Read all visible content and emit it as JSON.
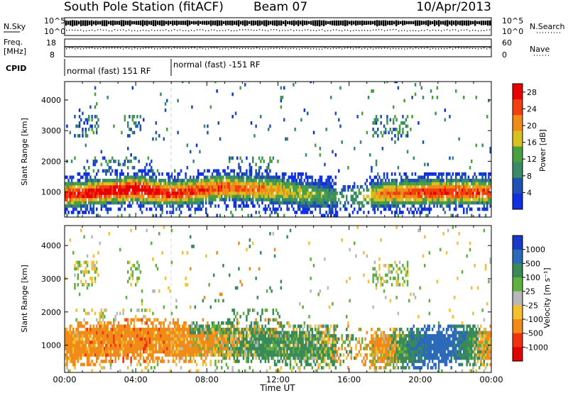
{
  "header": {
    "station": "South Pole Station (fitACF)",
    "beam": "Beam 07",
    "date": "10/Apr/2013"
  },
  "top_panels": {
    "nsky": {
      "label": "N.Sky",
      "tick_top": "10^5",
      "tick_bottom": "10^0"
    },
    "nsearch": {
      "label": "N.Search",
      "tick_top": "10^5",
      "tick_bottom": "10^0"
    },
    "freq": {
      "label_line1": "Freq.",
      "label_line2": "[MHz]",
      "ticks": [
        "18",
        "8"
      ]
    },
    "nave": {
      "label": "Nave",
      "ticks": [
        "60",
        "0"
      ]
    },
    "cpid": {
      "label": "CPID",
      "segments": [
        "normal (fast) 151 RF",
        "normal (fast) -151 RF"
      ]
    }
  },
  "chart_data": [
    {
      "type": "heatmap",
      "title": "",
      "xlabel": "Time UT",
      "ylabel": "Slant Range [km]",
      "x_ticks": [
        "00:00",
        "04:00",
        "08:00",
        "12:00",
        "16:00",
        "20:00",
        "00:00"
      ],
      "x_range_hours": [
        0,
        24
      ],
      "y_ticks": [
        "1000",
        "2000",
        "3000",
        "4000"
      ],
      "ylim": [
        180,
        4600
      ],
      "colorbar": {
        "label": "Power [dB]",
        "ticks": [
          "4",
          "8",
          "12",
          "16",
          "20",
          "24",
          "28"
        ],
        "range": [
          0,
          30
        ],
        "colors": [
          "#1030e0",
          "#2050b0",
          "#3a8a6a",
          "#48a040",
          "#d8c020",
          "#f08a18",
          "#f04010",
          "#e80000"
        ]
      },
      "echo_band": [
        {
          "t": 0,
          "center": 850,
          "peak": 26
        },
        {
          "t": 4,
          "center": 1050,
          "peak": 30
        },
        {
          "t": 6,
          "center": 900,
          "peak": 26
        },
        {
          "t": 9,
          "center": 1100,
          "peak": 24
        },
        {
          "t": 12,
          "center": 1000,
          "peak": 20
        },
        {
          "t": 14,
          "center": 850,
          "peak": 14
        },
        {
          "t": 16,
          "center": 750,
          "peak": 10
        },
        {
          "t": 18,
          "center": 900,
          "peak": 22
        },
        {
          "t": 21,
          "center": 950,
          "peak": 26
        },
        {
          "t": 24,
          "center": 950,
          "peak": 24
        }
      ]
    },
    {
      "type": "heatmap",
      "title": "",
      "xlabel": "Time UT",
      "ylabel": "Slant Range [km]",
      "x_ticks": [
        "00:00",
        "04:00",
        "08:00",
        "12:00",
        "16:00",
        "20:00",
        "00:00"
      ],
      "x_range_hours": [
        0,
        24
      ],
      "y_ticks": [
        "1000",
        "2000",
        "3000",
        "4000"
      ],
      "ylim": [
        180,
        4600
      ],
      "colorbar": {
        "label": "Velocity [m s⁻¹]",
        "ticks": [
          "1000",
          "500",
          "100",
          "25",
          "-25",
          "-100",
          "-500",
          "-1000"
        ],
        "colors": [
          "#1838c8",
          "#2a6ab8",
          "#3a8a58",
          "#60b040",
          "#b8b8b8",
          "#f4c030",
          "#f08a18",
          "#f03010",
          "#e00000"
        ]
      },
      "echo_band": [
        {
          "t": 0,
          "center": 950,
          "velocity": -150
        },
        {
          "t": 4,
          "center": 1100,
          "velocity": -200
        },
        {
          "t": 8,
          "center": 1050,
          "velocity": -100
        },
        {
          "t": 11,
          "center": 1050,
          "velocity": 150
        },
        {
          "t": 14,
          "center": 900,
          "velocity": 80
        },
        {
          "t": 18,
          "center": 850,
          "velocity": -120
        },
        {
          "t": 21,
          "center": 900,
          "velocity": 600
        },
        {
          "t": 24,
          "center": 950,
          "velocity": -150
        }
      ]
    }
  ]
}
